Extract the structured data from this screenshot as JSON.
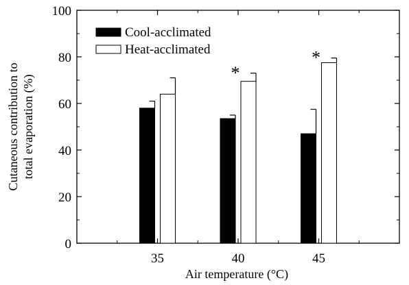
{
  "chart_data": {
    "type": "bar",
    "categories": [
      "35",
      "40",
      "45"
    ],
    "series": [
      {
        "name": "Cool-acclimated",
        "values": [
          58,
          53.5,
          47
        ],
        "errors": [
          3,
          1.5,
          10.5
        ],
        "color": "#000000"
      },
      {
        "name": "Heat-acclimated",
        "values": [
          64,
          69.5,
          77.5
        ],
        "errors": [
          7,
          3.5,
          2
        ],
        "color": "#ffffff"
      }
    ],
    "significance": [
      "",
      "*",
      "*"
    ],
    "title": "",
    "xlabel": "Air temperature (°C)",
    "ylabel_line1": "Cutaneous contribution to",
    "ylabel_line2": "total evaporation (%)",
    "ylim": [
      0,
      100
    ],
    "yticks": [
      0,
      20,
      40,
      60,
      80,
      100
    ],
    "grid": false,
    "legend_position": "top-left"
  }
}
